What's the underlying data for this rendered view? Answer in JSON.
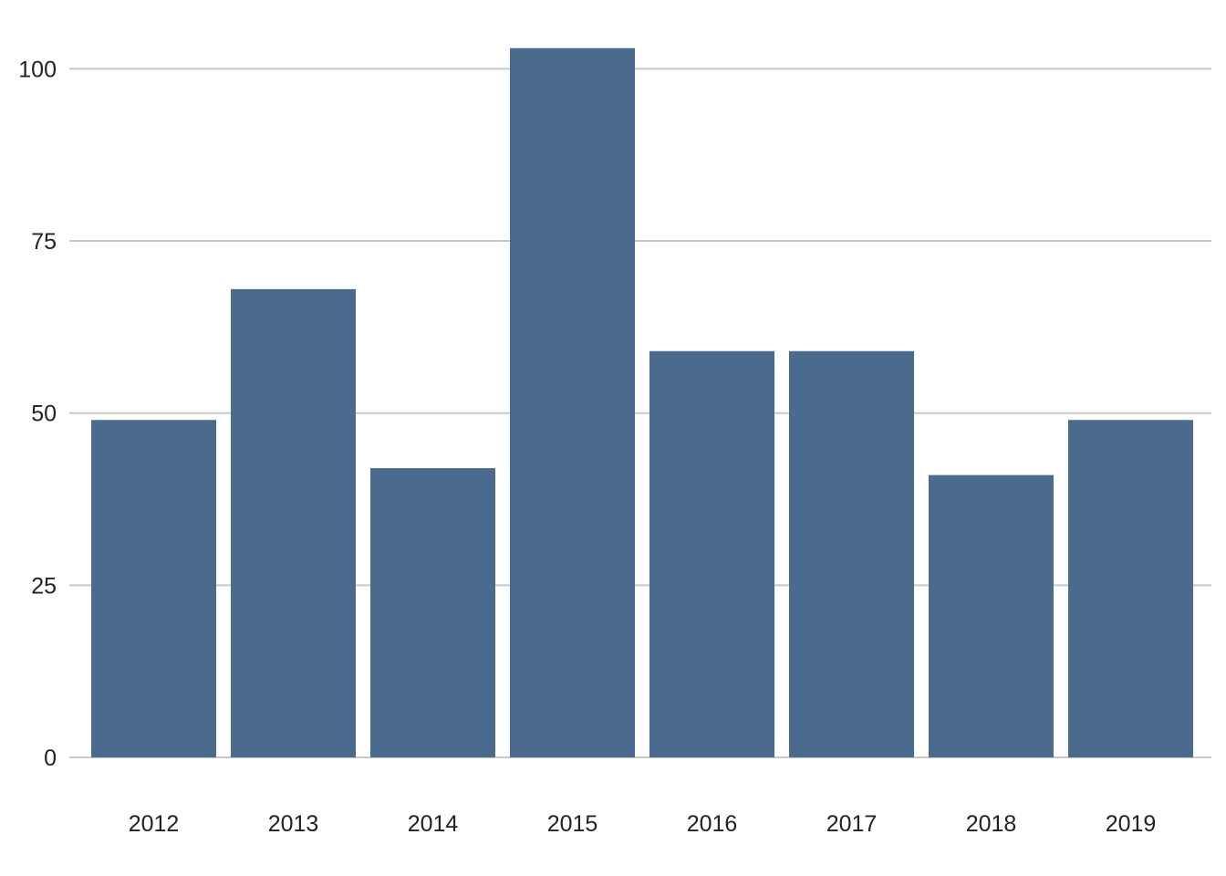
{
  "chart_data": {
    "type": "bar",
    "title": "",
    "xlabel": "",
    "ylabel": "",
    "categories": [
      "2012",
      "2013",
      "2014",
      "2015",
      "2016",
      "2017",
      "2018",
      "2019"
    ],
    "values": [
      49,
      68,
      42,
      103,
      59,
      59,
      41,
      49
    ],
    "ylim": [
      0,
      105
    ],
    "yticks": [
      0,
      25,
      50,
      75,
      100
    ],
    "ytick_labels": [
      "0",
      "25",
      "50",
      "75",
      "100"
    ],
    "grid": "horizontal",
    "legend": "none",
    "bar_color": "#4a6b8d",
    "grid_color": "#c8c8cc",
    "text_color": "#222222"
  }
}
